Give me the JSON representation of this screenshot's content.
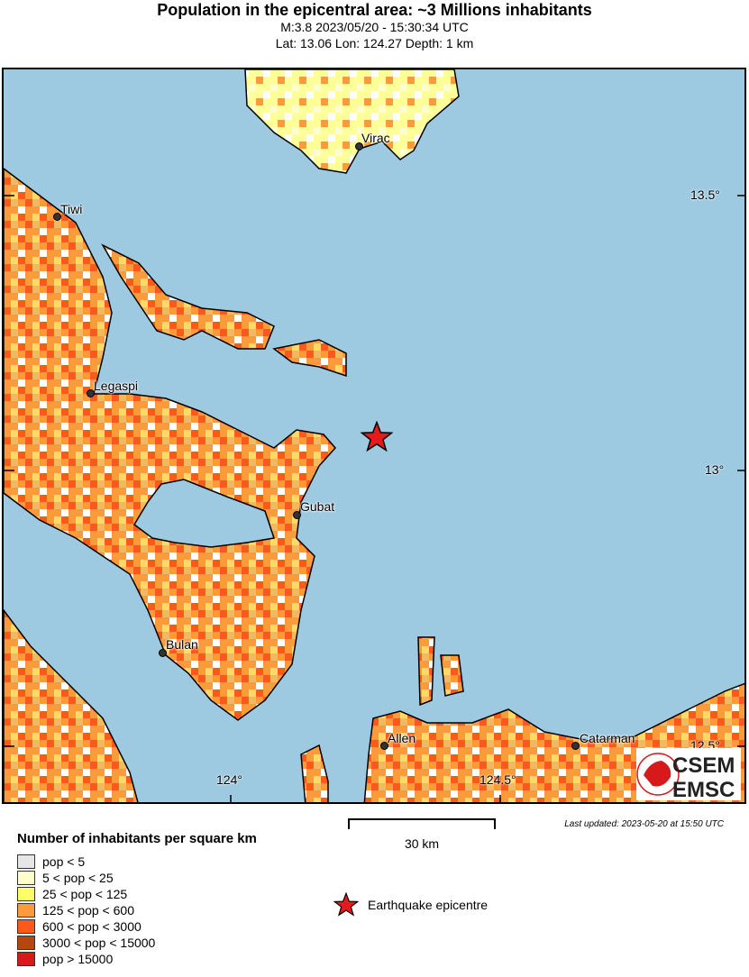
{
  "header": {
    "title": "Population in the epicentral area: ~3 Millions inhabitants",
    "event": "M:3.8 2023/05/20 - 15:30:34 UTC",
    "location": "Lat: 13.06 Lon: 124.27 Depth: 1 km"
  },
  "map": {
    "sea_color": "#9ecae1",
    "cities": [
      {
        "name": "Virac"
      },
      {
        "name": "Tiwi"
      },
      {
        "name": "Legaspi"
      },
      {
        "name": "Gubat"
      },
      {
        "name": "Bulan"
      },
      {
        "name": "Allen"
      },
      {
        "name": "Catarman"
      }
    ],
    "lat_ticks": [
      "13.5°",
      "13°",
      "12.5°"
    ],
    "lon_ticks": [
      "124°",
      "124.5°"
    ],
    "epicenter": {
      "lat": 13.06,
      "lon": 124.27,
      "color": "#e41a1c",
      "icon": "star-icon"
    }
  },
  "legend": {
    "title": "Number of inhabitants per square km",
    "items": [
      {
        "label": "pop < 5",
        "color": "#e6e6e6"
      },
      {
        "label": "5 < pop < 25",
        "color": "#ffffcc"
      },
      {
        "label": "25 < pop < 125",
        "color": "#ffff66"
      },
      {
        "label": "125 < pop < 600",
        "color": "#fd9a3c"
      },
      {
        "label": "600 < pop < 3000",
        "color": "#fc5a1a"
      },
      {
        "label": "3000 < pop < 15000",
        "color": "#b5460f"
      },
      {
        "label": "pop > 15000",
        "color": "#d7191c"
      }
    ],
    "epicentre_label": "Earthquake epicentre"
  },
  "scale": {
    "label": "30 km"
  },
  "updated": "Last updated: 2023-05-20 at 15:50 UTC",
  "logo": {
    "top": "CSEM",
    "bottom": "EMSC"
  }
}
